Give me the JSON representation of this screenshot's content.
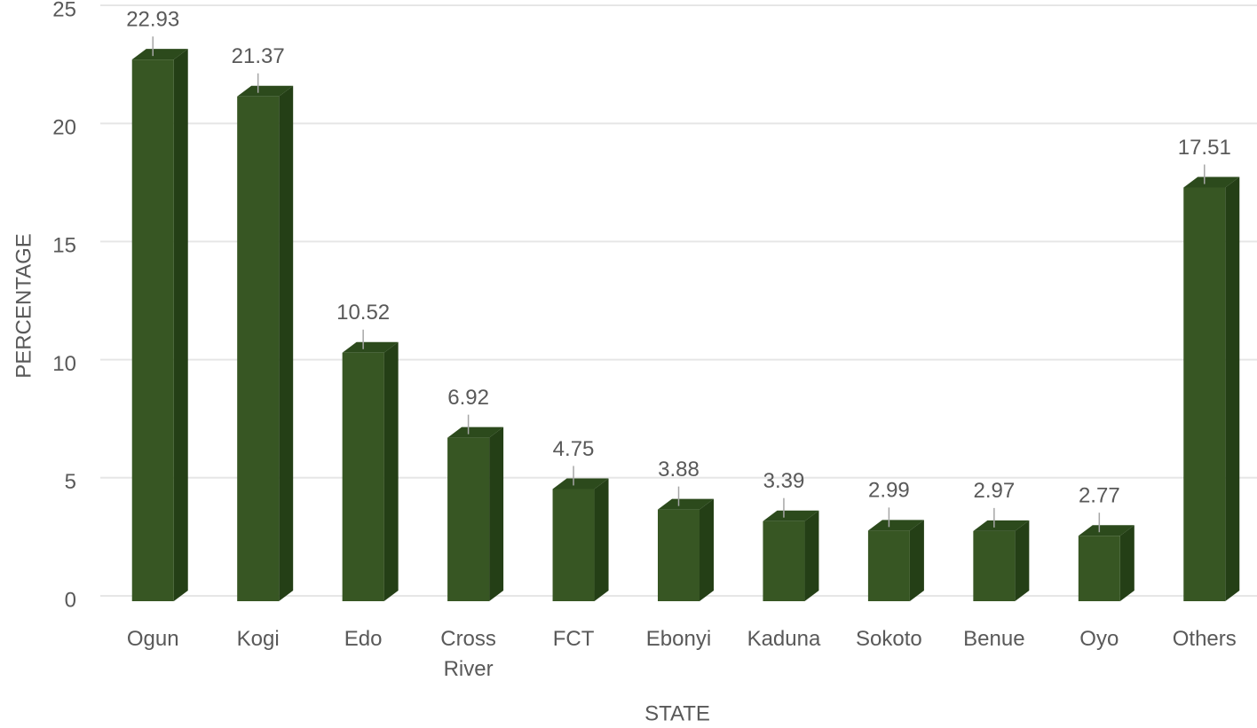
{
  "chart_data": {
    "type": "bar3d",
    "x_label": "STATE",
    "y_label": "PERCENTAGE",
    "categories": [
      "Ogun",
      "Kogi",
      "Edo",
      "Cross River",
      "FCT",
      "Ebonyi",
      "Kaduna",
      "Sokoto",
      "Benue",
      "Oyo",
      "Others"
    ],
    "values": [
      22.93,
      21.37,
      10.52,
      6.92,
      4.75,
      3.88,
      3.39,
      2.99,
      2.97,
      2.77,
      17.51
    ],
    "color": "#375623",
    "ylim": [
      0,
      25
    ],
    "yticks": [
      0,
      5,
      10,
      15,
      20,
      25
    ],
    "grid": true
  }
}
